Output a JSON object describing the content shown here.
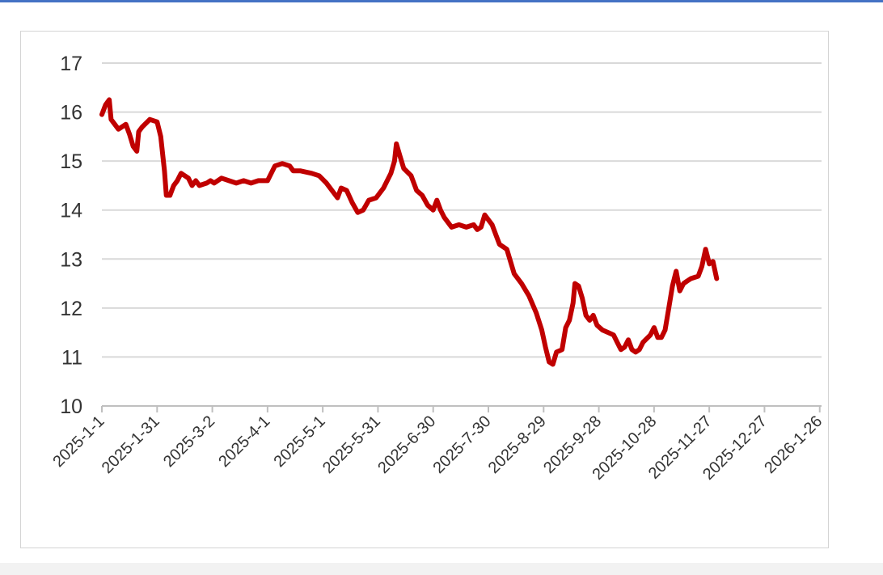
{
  "chart_data": {
    "type": "line",
    "title": "",
    "xlabel": "",
    "ylabel": "",
    "ylim": [
      10,
      17
    ],
    "yticks": [
      "10",
      "11",
      "12",
      "13",
      "14",
      "15",
      "16",
      "17"
    ],
    "xticks": [
      "2025-1-1",
      "2025-1-31",
      "2025-3-2",
      "2025-4-1",
      "2025-5-1",
      "2025-5-31",
      "2025-6-30",
      "2025-7-30",
      "2025-8-29",
      "2025-9-28",
      "2025-10-28",
      "2025-11-27",
      "2025-12-27",
      "2026-1-26"
    ],
    "xtick_day_offsets": [
      0,
      30,
      60,
      90,
      120,
      150,
      180,
      210,
      240,
      270,
      300,
      330,
      360,
      390
    ],
    "x_range_days": [
      0,
      391
    ],
    "grid": true,
    "legend": "none",
    "series": [
      {
        "color": "#c00000",
        "points": [
          [
            "2025-1-1",
            15.95
          ],
          [
            "2025-1-3",
            16.15
          ],
          [
            "2025-1-5",
            16.25
          ],
          [
            "2025-1-6",
            15.85
          ],
          [
            "2025-1-8",
            15.75
          ],
          [
            "2025-1-10",
            15.65
          ],
          [
            "2025-1-14",
            15.75
          ],
          [
            "2025-1-16",
            15.55
          ],
          [
            "2025-1-18",
            15.3
          ],
          [
            "2025-1-20",
            15.2
          ],
          [
            "2025-1-21",
            15.6
          ],
          [
            "2025-1-23",
            15.7
          ],
          [
            "2025-1-27",
            15.85
          ],
          [
            "2025-1-31",
            15.8
          ],
          [
            "2025-2-2",
            15.5
          ],
          [
            "2025-2-4",
            14.8
          ],
          [
            "2025-2-5",
            14.3
          ],
          [
            "2025-2-7",
            14.3
          ],
          [
            "2025-2-9",
            14.5
          ],
          [
            "2025-2-11",
            14.6
          ],
          [
            "2025-2-13",
            14.75
          ],
          [
            "2025-2-17",
            14.65
          ],
          [
            "2025-2-19",
            14.5
          ],
          [
            "2025-2-21",
            14.6
          ],
          [
            "2025-2-23",
            14.5
          ],
          [
            "2025-2-27",
            14.55
          ],
          [
            "2025-3-1",
            14.6
          ],
          [
            "2025-3-3",
            14.55
          ],
          [
            "2025-3-7",
            14.65
          ],
          [
            "2025-3-11",
            14.6
          ],
          [
            "2025-3-15",
            14.55
          ],
          [
            "2025-3-19",
            14.6
          ],
          [
            "2025-3-23",
            14.55
          ],
          [
            "2025-3-27",
            14.6
          ],
          [
            "2025-4-1",
            14.6
          ],
          [
            "2025-4-5",
            14.9
          ],
          [
            "2025-4-9",
            14.95
          ],
          [
            "2025-4-13",
            14.9
          ],
          [
            "2025-4-15",
            14.8
          ],
          [
            "2025-4-19",
            14.8
          ],
          [
            "2025-4-25",
            14.75
          ],
          [
            "2025-4-29",
            14.7
          ],
          [
            "2025-5-3",
            14.55
          ],
          [
            "2025-5-7",
            14.35
          ],
          [
            "2025-5-9",
            14.25
          ],
          [
            "2025-5-11",
            14.45
          ],
          [
            "2025-5-14",
            14.4
          ],
          [
            "2025-5-17",
            14.15
          ],
          [
            "2025-5-20",
            13.95
          ],
          [
            "2025-5-23",
            14.0
          ],
          [
            "2025-5-26",
            14.2
          ],
          [
            "2025-5-30",
            14.25
          ],
          [
            "2025-6-3",
            14.45
          ],
          [
            "2025-6-7",
            14.75
          ],
          [
            "2025-6-9",
            15.0
          ],
          [
            "2025-6-10",
            15.35
          ],
          [
            "2025-6-12",
            15.1
          ],
          [
            "2025-6-14",
            14.85
          ],
          [
            "2025-6-18",
            14.7
          ],
          [
            "2025-6-21",
            14.4
          ],
          [
            "2025-6-24",
            14.3
          ],
          [
            "2025-6-27",
            14.1
          ],
          [
            "2025-6-30",
            14.0
          ],
          [
            "2025-7-2",
            14.2
          ],
          [
            "2025-7-4",
            14.0
          ],
          [
            "2025-7-6",
            13.85
          ],
          [
            "2025-7-10",
            13.65
          ],
          [
            "2025-7-14",
            13.7
          ],
          [
            "2025-7-18",
            13.65
          ],
          [
            "2025-7-22",
            13.7
          ],
          [
            "2025-7-24",
            13.6
          ],
          [
            "2025-7-26",
            13.65
          ],
          [
            "2025-7-28",
            13.9
          ],
          [
            "2025-8-1",
            13.7
          ],
          [
            "2025-8-3",
            13.5
          ],
          [
            "2025-8-5",
            13.3
          ],
          [
            "2025-8-9",
            13.2
          ],
          [
            "2025-8-13",
            12.7
          ],
          [
            "2025-8-17",
            12.5
          ],
          [
            "2025-8-21",
            12.25
          ],
          [
            "2025-8-25",
            11.9
          ],
          [
            "2025-8-28",
            11.55
          ],
          [
            "2025-8-30",
            11.2
          ],
          [
            "2025-9-1",
            10.9
          ],
          [
            "2025-9-3",
            10.85
          ],
          [
            "2025-9-5",
            11.1
          ],
          [
            "2025-9-8",
            11.15
          ],
          [
            "2025-9-10",
            11.6
          ],
          [
            "2025-9-12",
            11.75
          ],
          [
            "2025-9-14",
            12.1
          ],
          [
            "2025-9-15",
            12.5
          ],
          [
            "2025-9-17",
            12.45
          ],
          [
            "2025-9-19",
            12.2
          ],
          [
            "2025-9-21",
            11.85
          ],
          [
            "2025-9-23",
            11.75
          ],
          [
            "2025-9-25",
            11.85
          ],
          [
            "2025-9-27",
            11.65
          ],
          [
            "2025-9-30",
            11.55
          ],
          [
            "2025-10-3",
            11.5
          ],
          [
            "2025-10-6",
            11.45
          ],
          [
            "2025-10-8",
            11.3
          ],
          [
            "2025-10-10",
            11.15
          ],
          [
            "2025-10-12",
            11.2
          ],
          [
            "2025-10-14",
            11.35
          ],
          [
            "2025-10-16",
            11.15
          ],
          [
            "2025-10-18",
            11.1
          ],
          [
            "2025-10-20",
            11.15
          ],
          [
            "2025-10-22",
            11.3
          ],
          [
            "2025-10-26",
            11.45
          ],
          [
            "2025-10-28",
            11.6
          ],
          [
            "2025-10-30",
            11.4
          ],
          [
            "2025-11-1",
            11.4
          ],
          [
            "2025-11-3",
            11.55
          ],
          [
            "2025-11-5",
            12.0
          ],
          [
            "2025-11-7",
            12.45
          ],
          [
            "2025-11-9",
            12.75
          ],
          [
            "2025-11-11",
            12.35
          ],
          [
            "2025-11-13",
            12.5
          ],
          [
            "2025-11-15",
            12.55
          ],
          [
            "2025-11-17",
            12.6
          ],
          [
            "2025-11-21",
            12.65
          ],
          [
            "2025-11-23",
            12.85
          ],
          [
            "2025-11-25",
            13.2
          ],
          [
            "2025-11-27",
            12.9
          ],
          [
            "2025-11-29",
            12.95
          ],
          [
            "2025-12-1",
            12.6
          ]
        ]
      }
    ]
  }
}
